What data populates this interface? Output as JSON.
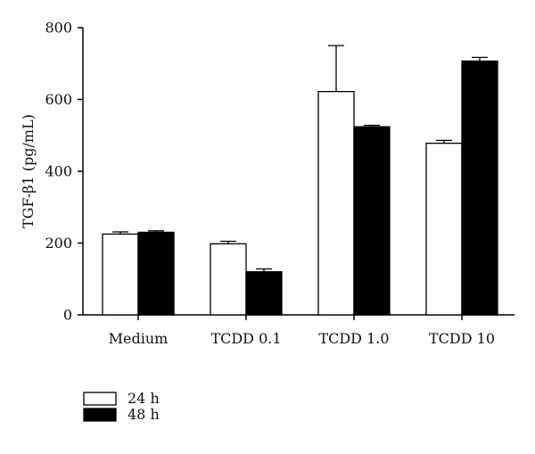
{
  "chart_data": {
    "type": "bar",
    "categories": [
      "Medium",
      "TCDD 0.1",
      "TCDD 1.0",
      "TCDD 10"
    ],
    "ylabel": "TGF-β1 (pg/mL)",
    "ylim": [
      0,
      800
    ],
    "yticks": [
      0,
      200,
      400,
      600,
      800
    ],
    "grid": false,
    "legend_position": "bottom-left",
    "series": [
      {
        "name": "24 h",
        "fill": "#ffffff",
        "values": [
          225,
          198,
          622,
          478
        ],
        "errors": [
          6,
          7,
          128,
          8
        ]
      },
      {
        "name": "48 h",
        "fill": "#000000",
        "values": [
          230,
          120,
          524,
          707
        ],
        "errors": [
          4,
          8,
          4,
          10
        ]
      }
    ]
  }
}
